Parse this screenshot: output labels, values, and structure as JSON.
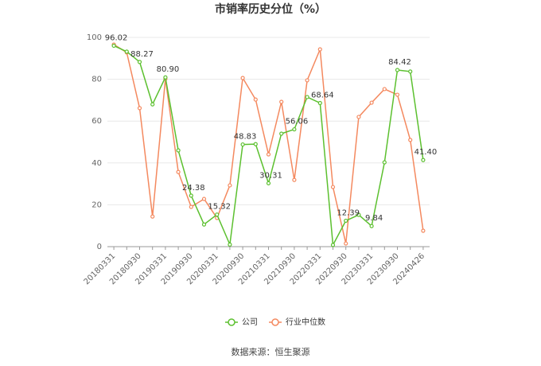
{
  "chart_data": {
    "type": "line",
    "title": "市销率历史分位（%）",
    "source": "数据来源：恒生聚源",
    "categories": [
      "20180331",
      null,
      "20180930",
      null,
      "20190331",
      null,
      "20190930",
      null,
      "20200331",
      null,
      "20200930",
      null,
      "20210331",
      null,
      "20210930",
      null,
      "20220331",
      null,
      "20220930",
      null,
      "20230331",
      null,
      "20230930",
      null,
      "20240426"
    ],
    "series": [
      {
        "name": "公司",
        "color": "#5cc02f",
        "values": [
          96.02,
          93.2,
          88.27,
          68,
          80.9,
          46,
          24.38,
          10.6,
          15.32,
          1,
          48.83,
          49,
          30.31,
          54,
          56.06,
          71.5,
          68.64,
          0.8,
          12.39,
          15.2,
          9.84,
          40.3,
          84.42,
          83.7,
          41.4
        ],
        "value_labels": [
          "96.02",
          null,
          "88.27",
          null,
          "80.90",
          null,
          "24.38",
          null,
          "15.32",
          null,
          "48.83",
          null,
          "30.31",
          null,
          "56.06",
          null,
          "68.64",
          null,
          "12.39",
          null,
          "9.84",
          null,
          "84.42",
          null,
          "41.40"
        ]
      },
      {
        "name": "行业中位数",
        "color": "#f4895f",
        "values": [
          96.6,
          92.8,
          66.2,
          14.4,
          80.2,
          35.7,
          19,
          22.8,
          13.7,
          29.3,
          80.6,
          70.3,
          44.1,
          69.2,
          31.9,
          79.5,
          94.3,
          28.5,
          1.5,
          62,
          68.8,
          75.3,
          72.6,
          51,
          7.6
        ]
      }
    ],
    "ylim": [
      0,
      100
    ],
    "yticks": [
      0,
      20,
      40,
      60,
      80,
      100
    ],
    "grid": true
  }
}
